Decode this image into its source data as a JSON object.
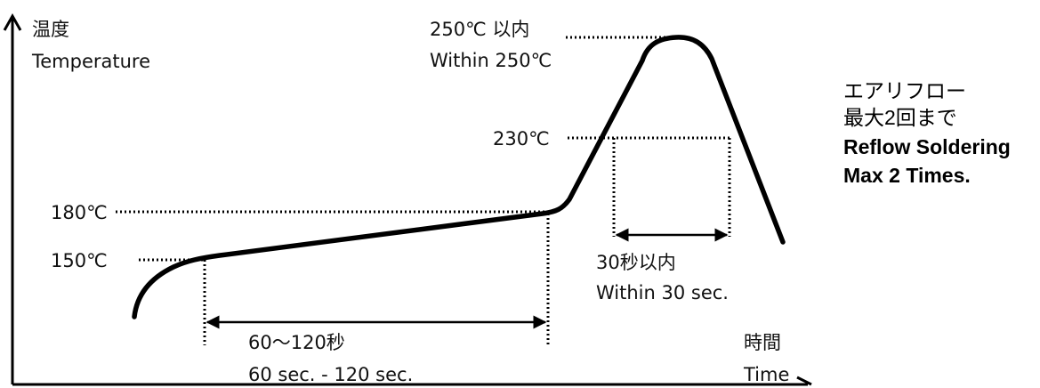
{
  "axes": {
    "y_label_ja": "温度",
    "y_label_en": "Temperature",
    "x_label_ja": "時間",
    "x_label_en": "Time"
  },
  "temperature_marks": {
    "t150": "150℃",
    "t180": "180℃",
    "t230": "230℃",
    "t250_ja": "250℃ 以内",
    "t250_en": "Within 250℃"
  },
  "durations": {
    "preheat_ja": "60～120秒",
    "preheat_en": "60 sec. - 120 sec.",
    "peak_ja": "30秒以内",
    "peak_en": "Within 30 sec."
  },
  "note": {
    "line1": "エアリフロー",
    "line2": "最大2回まで",
    "line3": "Reflow Soldering",
    "line4": "Max 2 Times."
  }
}
